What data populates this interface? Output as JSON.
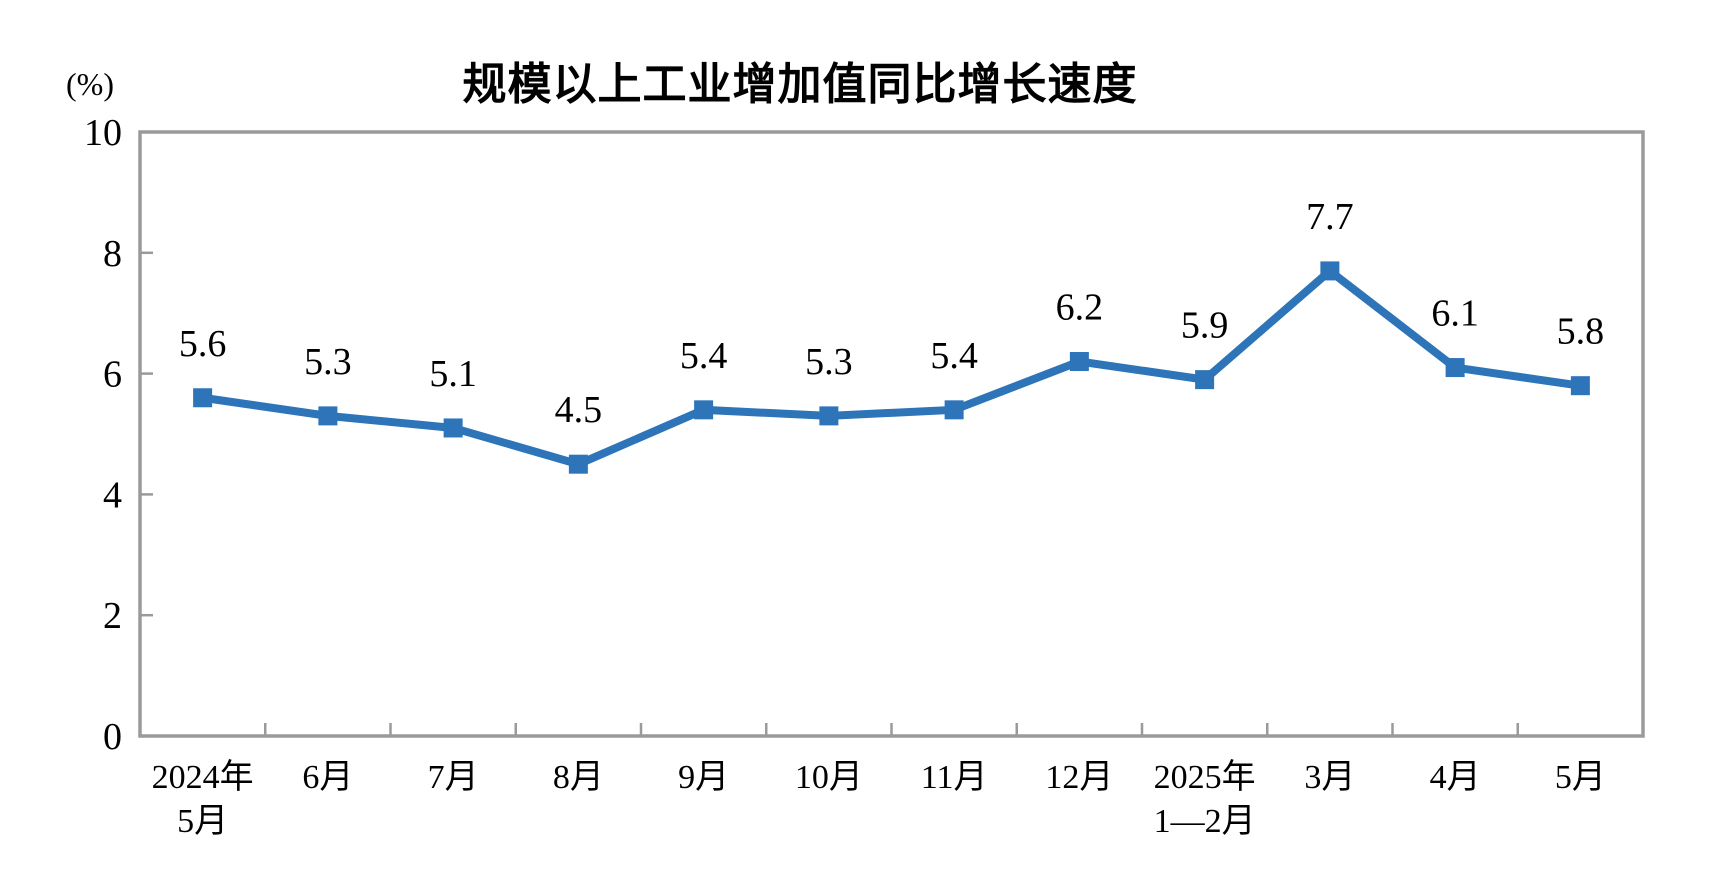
{
  "chart_data": {
    "type": "line",
    "title": "规模以上工业增加值同比增长速度",
    "unit_label": "(%)",
    "categories": [
      "2024年5月",
      "6月",
      "7月",
      "8月",
      "9月",
      "10月",
      "11月",
      "12月",
      "2025年1—2月",
      "3月",
      "4月",
      "5月"
    ],
    "category_display": [
      [
        "2024年",
        "5月"
      ],
      [
        "6月"
      ],
      [
        "7月"
      ],
      [
        "8月"
      ],
      [
        "9月"
      ],
      [
        "10月"
      ],
      [
        "11月"
      ],
      [
        "12月"
      ],
      [
        "2025年",
        "1—2月"
      ],
      [
        "3月"
      ],
      [
        "4月"
      ],
      [
        "5月"
      ]
    ],
    "values": [
      5.6,
      5.3,
      5.1,
      4.5,
      5.4,
      5.3,
      5.4,
      6.2,
      5.9,
      7.7,
      6.1,
      5.8
    ],
    "data_labels": [
      "5.6",
      "5.3",
      "5.1",
      "4.5",
      "5.4",
      "5.3",
      "5.4",
      "6.2",
      "5.9",
      "7.7",
      "6.1",
      "5.8"
    ],
    "ylim": [
      0,
      10
    ],
    "yticks": [
      0,
      2,
      4,
      6,
      8,
      10
    ],
    "grid": false,
    "legend": "none",
    "marker": "square",
    "colors": {
      "line": "#2E74B9",
      "marker": "#2E74B9",
      "plot_border": "#9A9A9A",
      "tick": "#9A9A9A",
      "text": "#000000"
    }
  }
}
